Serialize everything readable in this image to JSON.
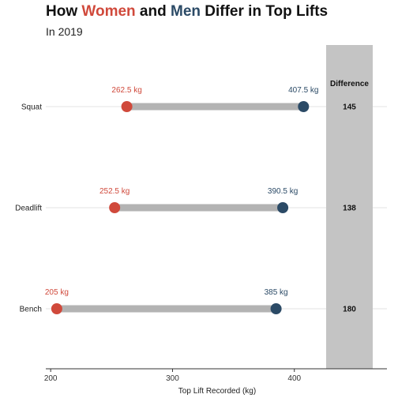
{
  "chart_data": {
    "type": "dumbbell",
    "title_parts": [
      "How ",
      "Women",
      " and ",
      "Men",
      " Differ in Top Lifts"
    ],
    "subtitle": "In 2019",
    "xlabel": "Top Lift Recorded (kg)",
    "xlim": [
      196,
      476
    ],
    "x_ticks": [
      200,
      300,
      400
    ],
    "x_tick_labels": [
      "200",
      "300",
      "400"
    ],
    "grid": false,
    "categories": [
      "Squat",
      "Deadlift",
      "Bench"
    ],
    "series": [
      {
        "name": "Women",
        "values": [
          262.5,
          252.5,
          205
        ],
        "labels": [
          "262.5 kg",
          "252.5 kg",
          "205 kg"
        ]
      },
      {
        "name": "Men",
        "values": [
          407.5,
          390.5,
          385
        ],
        "labels": [
          "407.5 kg",
          "390.5 kg",
          "385 kg"
        ]
      }
    ],
    "difference": {
      "header": "Difference",
      "values": [
        "145",
        "138",
        "180"
      ]
    },
    "colors": {
      "women": "#d0493b",
      "men": "#2b4a66",
      "bar": "#b3b3b3",
      "panel": "#c4c4c4",
      "gridline": "#e3e3e3"
    }
  }
}
